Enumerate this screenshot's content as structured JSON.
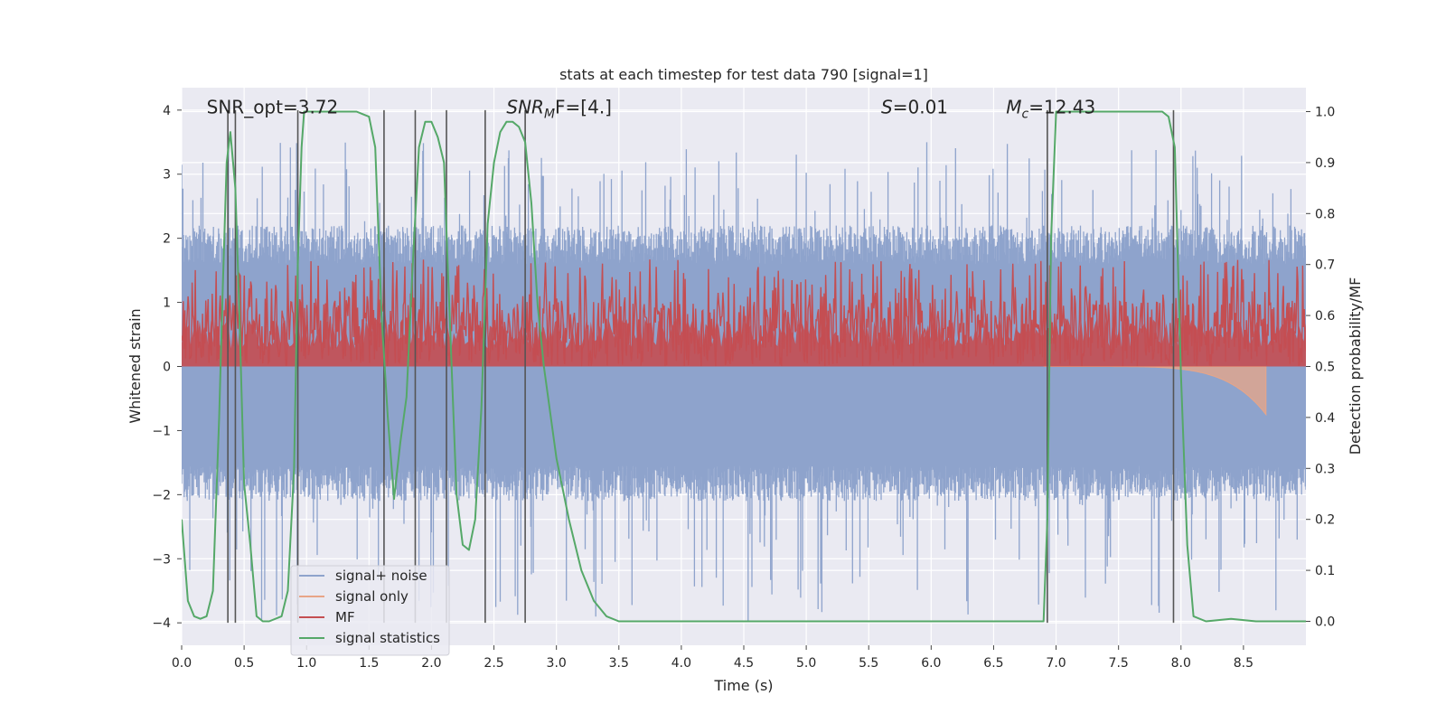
{
  "chart_data": {
    "type": "line",
    "title": "stats at each timestep for test data 790 [signal=1]",
    "xlabel": "Time (s)",
    "ylabel": "Whitened strain",
    "y2label": "Detection probability/MF",
    "xlim": [
      0.0,
      9.0
    ],
    "ylim": [
      -4.35,
      4.35
    ],
    "y2lim": [
      -0.047,
      1.047
    ],
    "grid": true,
    "legend_position": "lower-left",
    "xticks": [
      "0.0",
      "0.5",
      "1.0",
      "1.5",
      "2.0",
      "2.5",
      "3.0",
      "3.5",
      "4.0",
      "4.5",
      "5.0",
      "5.5",
      "6.0",
      "6.5",
      "7.0",
      "7.5",
      "8.0",
      "8.5"
    ],
    "yticks": [
      "4",
      "3",
      "2",
      "1",
      "0",
      "−1",
      "−2",
      "−3",
      "−4"
    ],
    "y2ticks": [
      "1.0",
      "0.9",
      "0.8",
      "0.7",
      "0.6",
      "0.5",
      "0.4",
      "0.3",
      "0.2",
      "0.1",
      "0.0"
    ],
    "annotations": [
      {
        "text": "SNR_opt=3.72",
        "x": 0.2
      },
      {
        "text": "SNR",
        "sub": "M",
        "suffix": "F=[4.]",
        "x": 2.6,
        "italic": true
      },
      {
        "text": "S",
        "suffix": "=0.01",
        "x": 5.6,
        "italic": true
      },
      {
        "text": "M",
        "sub": "c",
        "suffix": "=12.43",
        "x": 6.6,
        "italic": true
      }
    ],
    "noise": {
      "duration": 9.0,
      "samples": 1800,
      "low_band": [
        -1.55,
        -2.1
      ],
      "high_band": [
        1.6,
        2.2
      ],
      "peak_min": -4.0,
      "peak_max": 3.5
    },
    "mf": {
      "samples": 1400,
      "low": 0.5,
      "high": 0.63,
      "max": 0.71
    },
    "signal_only": {
      "start": 6.9,
      "end": 8.68,
      "min_y": -0.75
    },
    "vlines": [
      0.37,
      0.43,
      0.93,
      1.62,
      1.87,
      2.12,
      2.43,
      2.75,
      6.93,
      7.94
    ],
    "series": [
      {
        "name": "signal+ noise",
        "color": "#8ea3cc"
      },
      {
        "name": "signal only",
        "color": "#e8a587"
      },
      {
        "name": "MF",
        "color": "#c44e52"
      },
      {
        "name": "signal statistics",
        "color": "#55a868",
        "x": [
          0.0,
          0.05,
          0.1,
          0.15,
          0.2,
          0.25,
          0.3,
          0.33,
          0.36,
          0.39,
          0.43,
          0.46,
          0.5,
          0.55,
          0.6,
          0.65,
          0.7,
          0.8,
          0.85,
          0.9,
          0.93,
          0.96,
          0.98,
          1.0,
          1.1,
          1.2,
          1.3,
          1.4,
          1.45,
          1.5,
          1.55,
          1.6,
          1.65,
          1.7,
          1.75,
          1.8,
          1.85,
          1.9,
          1.95,
          2.0,
          2.05,
          2.1,
          2.13,
          2.2,
          2.25,
          2.3,
          2.35,
          2.4,
          2.45,
          2.5,
          2.55,
          2.6,
          2.65,
          2.7,
          2.75,
          2.8,
          2.85,
          2.9,
          3.0,
          3.1,
          3.2,
          3.3,
          3.4,
          3.5,
          4.0,
          5.0,
          6.0,
          6.5,
          6.8,
          6.85,
          6.9,
          6.93,
          6.96,
          7.0,
          7.1,
          7.5,
          7.8,
          7.85,
          7.9,
          7.95,
          8.0,
          8.05,
          8.1,
          8.2,
          8.4,
          8.6,
          8.8,
          9.0
        ],
        "y": [
          0.2,
          0.04,
          0.01,
          0.005,
          0.01,
          0.06,
          0.4,
          0.66,
          0.9,
          0.96,
          0.85,
          0.62,
          0.27,
          0.15,
          0.01,
          0.0,
          0.0,
          0.01,
          0.06,
          0.3,
          0.7,
          0.93,
          1.0,
          1.0,
          1.0,
          1.0,
          1.0,
          1.0,
          0.995,
          0.99,
          0.93,
          0.6,
          0.4,
          0.24,
          0.35,
          0.44,
          0.7,
          0.93,
          0.98,
          0.98,
          0.95,
          0.9,
          0.7,
          0.25,
          0.15,
          0.14,
          0.2,
          0.42,
          0.78,
          0.9,
          0.96,
          0.98,
          0.98,
          0.97,
          0.94,
          0.82,
          0.62,
          0.5,
          0.32,
          0.2,
          0.1,
          0.04,
          0.01,
          0.0,
          0.0,
          0.0,
          0.0,
          0.0,
          0.0,
          0.0,
          0.0,
          0.2,
          0.75,
          1.0,
          1.0,
          1.0,
          1.0,
          1.0,
          0.99,
          0.93,
          0.48,
          0.15,
          0.01,
          0.0,
          0.005,
          0.0,
          0.0,
          0.0
        ]
      }
    ]
  }
}
